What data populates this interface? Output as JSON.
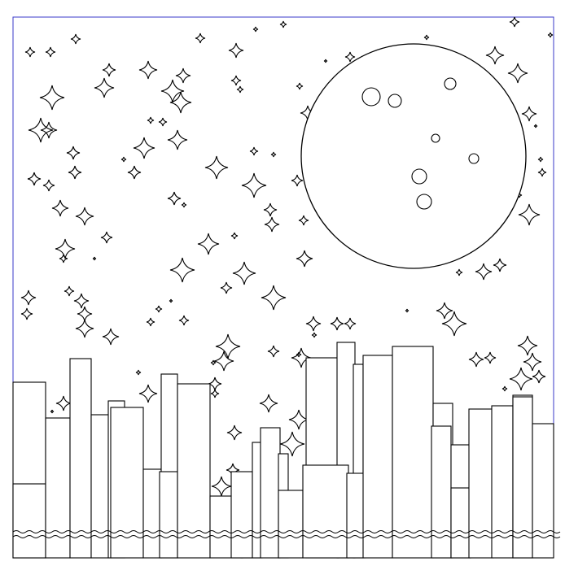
{
  "artwork": {
    "subject": "coloring-page",
    "colors": {
      "ink": "#000000",
      "paper": "#ffffff",
      "frame": "#3a3ac8"
    },
    "icons": [
      "moon-icon",
      "star-icon",
      "building-icon",
      "water-wave-icon"
    ]
  }
}
